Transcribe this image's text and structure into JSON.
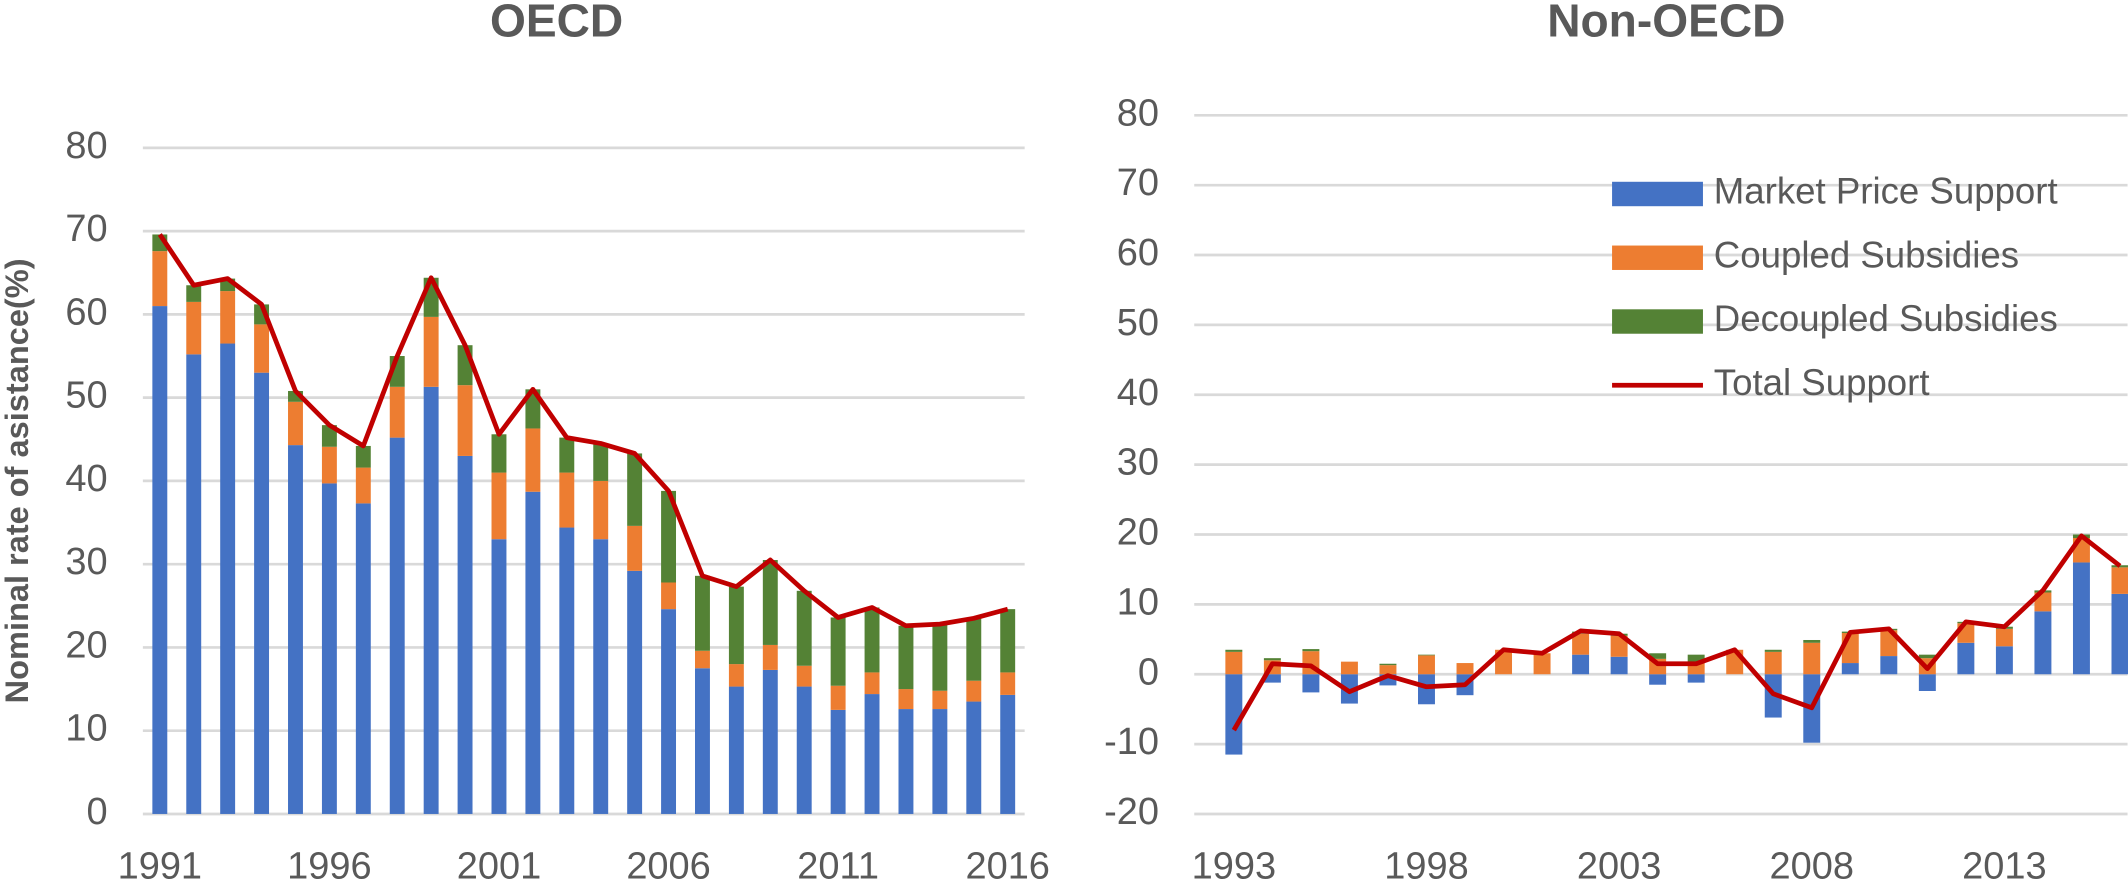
{
  "chart_data": [
    {
      "type": "bar",
      "stacked": true,
      "title": "OECD",
      "ylabel": "Nominal rate of asistance(%)",
      "categories": [
        "1991",
        null,
        null,
        null,
        null,
        "1996",
        null,
        null,
        null,
        null,
        "2001",
        null,
        null,
        null,
        null,
        "2006",
        null,
        null,
        null,
        null,
        "2011",
        null,
        null,
        null,
        null,
        "2016"
      ],
      "series": [
        {
          "name": "Market Price Support",
          "color": "#4472c4",
          "values": [
            61,
            55.2,
            56.5,
            53,
            44.3,
            39.7,
            37.3,
            45.2,
            51.3,
            43,
            33,
            38.7,
            34.4,
            33,
            29.2,
            24.6,
            17.5,
            15.3,
            17.3,
            15.3,
            12.5,
            14.4,
            12.6,
            12.6,
            13.5,
            14.3
          ]
        },
        {
          "name": "Coupled Subsidies",
          "color": "#ed7d31",
          "values": [
            6.6,
            6.3,
            6.3,
            5.8,
            5.2,
            4.4,
            4.3,
            6.1,
            8.4,
            8.5,
            8,
            7.6,
            6.6,
            7,
            5.4,
            3.2,
            2.1,
            2.7,
            3,
            2.5,
            2.9,
            2.6,
            2.4,
            2.2,
            2.5,
            2.7
          ]
        },
        {
          "name": "Decoupled Subsidies",
          "color": "#548235",
          "values": [
            2,
            2,
            1.5,
            2.4,
            1.3,
            2.6,
            2.6,
            3.7,
            4.7,
            4.8,
            4.6,
            4.7,
            4.2,
            4.5,
            8.7,
            11,
            9,
            9.3,
            10.2,
            9,
            8.2,
            7.8,
            7.6,
            8,
            7.5,
            7.6
          ]
        },
        {
          "name": "Total Support",
          "color": "#c00000",
          "type": "line",
          "values": [
            69.6,
            63.5,
            64.3,
            61.2,
            50.8,
            46.7,
            44.2,
            55,
            64.4,
            56.3,
            45.6,
            51,
            45.2,
            44.5,
            43.3,
            38.8,
            28.6,
            27.3,
            30.5,
            26.8,
            23.6,
            24.8,
            22.6,
            22.8,
            23.5,
            24.6
          ]
        }
      ],
      "ylim": [
        0,
        80
      ],
      "yticks": [
        0,
        10,
        20,
        30,
        40,
        50,
        60,
        70,
        80
      ],
      "grid": true
    },
    {
      "type": "bar",
      "stacked": true,
      "title": "Non-OECD",
      "legend": "upper right",
      "categories": [
        "1993",
        null,
        null,
        null,
        null,
        "1998",
        null,
        null,
        null,
        null,
        "2003",
        null,
        null,
        null,
        null,
        "2008",
        null,
        null,
        null,
        null,
        "2013",
        null,
        null,
        null
      ],
      "series": [
        {
          "name": "Market Price Support",
          "color": "#4472c4",
          "values": [
            -11.5,
            -1.2,
            -2.6,
            -4.2,
            -1.6,
            -4.3,
            -3,
            0,
            0,
            2.8,
            2.5,
            -1.5,
            -1.2,
            0,
            -6.2,
            -9.8,
            1.6,
            2.6,
            -2.4,
            4.5,
            4,
            9,
            16,
            11.5
          ]
        },
        {
          "name": "Coupled Subsidies",
          "color": "#ed7d31",
          "values": [
            3.2,
            2,
            3.3,
            1.8,
            1.3,
            2.7,
            1.6,
            3.5,
            3,
            3,
            3,
            2.2,
            1.8,
            3.5,
            3.2,
            4.5,
            4.3,
            3.7,
            2.3,
            2.8,
            2.5,
            2.7,
            3.5,
            3.8
          ]
        },
        {
          "name": "Decoupled Subsidies",
          "color": "#548235",
          "values": [
            0.3,
            0.3,
            0.3,
            0,
            0.2,
            0.1,
            0,
            0,
            0,
            0.3,
            0.3,
            0.8,
            1,
            0,
            0.3,
            0.4,
            0.2,
            0.2,
            0.5,
            0.2,
            0.3,
            0.3,
            0.5,
            0.3
          ]
        },
        {
          "name": "Total Support",
          "color": "#c00000",
          "type": "line",
          "values": [
            -8,
            1.5,
            1.2,
            -2.5,
            -0.2,
            -1.8,
            -1.5,
            3.5,
            3,
            6.2,
            5.8,
            1.5,
            1.5,
            3.5,
            -2.8,
            -4.8,
            6,
            6.5,
            0.8,
            7.5,
            6.8,
            12,
            19.8,
            15.5
          ]
        }
      ],
      "ylim": [
        -20,
        80
      ],
      "yticks": [
        -20,
        -10,
        0,
        10,
        20,
        30,
        40,
        50,
        60,
        70,
        80
      ],
      "grid": true
    }
  ]
}
